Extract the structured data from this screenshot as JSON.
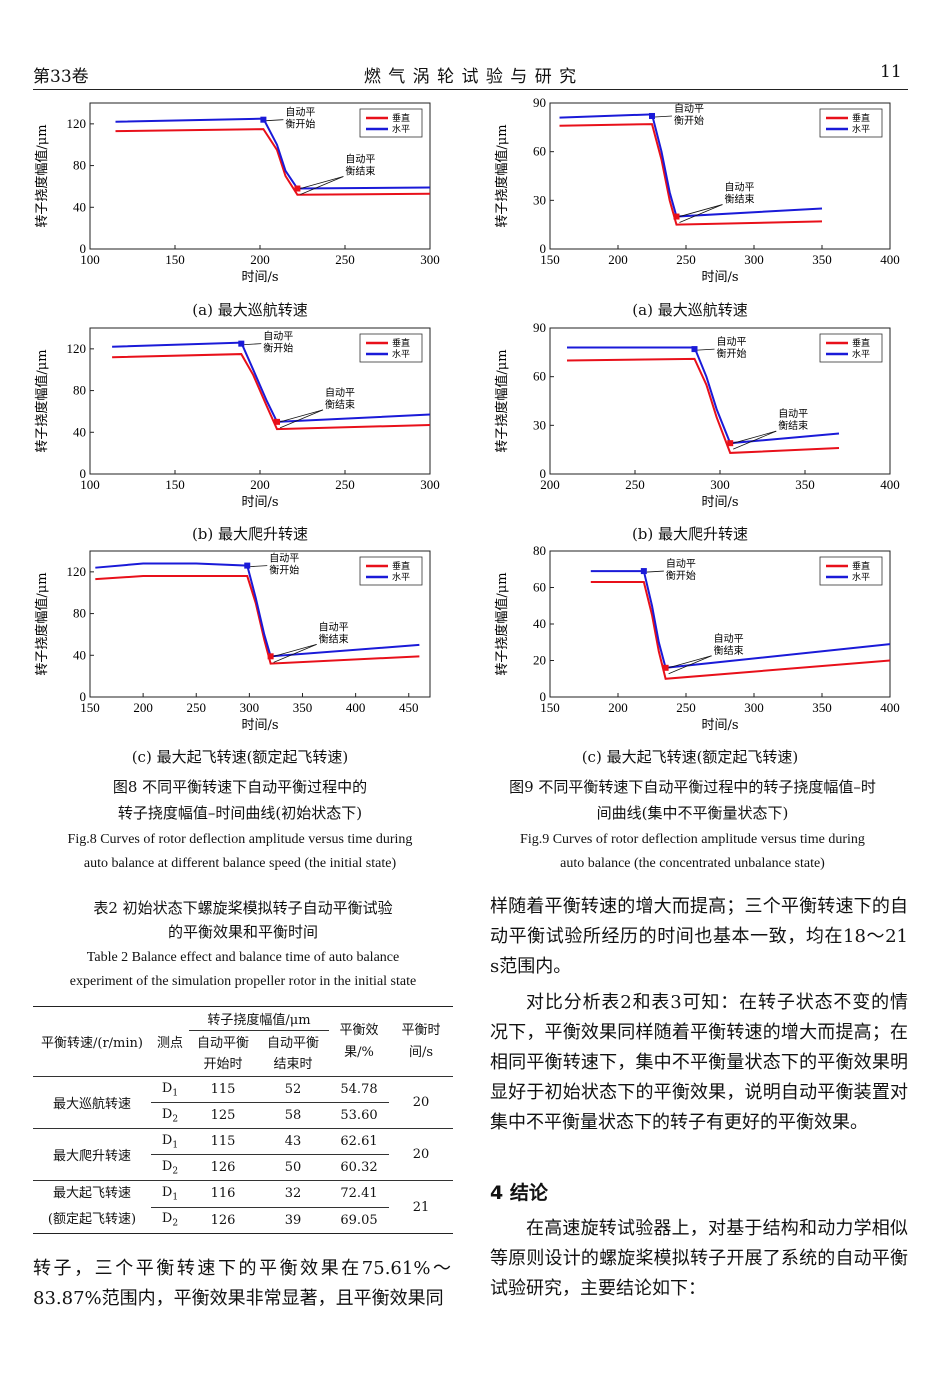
{
  "header": {
    "volume": "第33卷",
    "journal": "燃 气 涡 轮 试 验 与 研 究",
    "page": "11"
  },
  "common": {
    "ylabel": "转子挠度幅值/μm",
    "xlabel": "时间/s",
    "legend": [
      "垂直",
      "水平"
    ],
    "ann_start": [
      "自动平",
      "衡开始"
    ],
    "ann_end": [
      "自动平",
      "衡结束"
    ]
  },
  "subcaptions": {
    "a": "(a)  最大巡航转速",
    "b": "(b)  最大爬升转速",
    "c": "(c)  最大起飞转速(额定起飞转速)"
  },
  "fig8": {
    "cap1": "图8  不同平衡转速下自动平衡过程中的",
    "cap2": "转子挠度幅值–时间曲线(初始状态下)",
    "en1": "Fig.8  Curves of rotor deflection amplitude versus time during",
    "en2": "auto balance at different balance speed (the initial state)"
  },
  "fig9": {
    "cap1": "图9  不同平衡转速下自动平衡过程中的转子挠度幅值–时",
    "cap2": "间曲线(集中不平衡量状态下)",
    "en1": "Fig.9  Curves of rotor deflection amplitude versus time during",
    "en2": "auto balance (the concentrated unbalance state)"
  },
  "chart_data": [
    {
      "id": "fig8a",
      "type": "line",
      "xlim": [
        100,
        300
      ],
      "ylim": [
        0,
        140
      ],
      "xticks": [
        100,
        150,
        200,
        250,
        300
      ],
      "yticks": [
        0,
        40,
        80,
        120
      ],
      "series": [
        {
          "name": "垂直",
          "color": "#e8101a",
          "x": [
            115,
            202,
            210,
            215,
            222,
            300
          ],
          "y": [
            113,
            115,
            95,
            70,
            52,
            53
          ]
        },
        {
          "name": "水平",
          "color": "#1a1ad8",
          "x": [
            115,
            202,
            210,
            215,
            222,
            300
          ],
          "y": [
            122,
            125,
            100,
            75,
            58,
            59
          ]
        }
      ],
      "ann_start_pt": [
        202,
        124
      ],
      "ann_end_pt": [
        222,
        58
      ]
    },
    {
      "id": "fig8b",
      "type": "line",
      "xlim": [
        100,
        300
      ],
      "ylim": [
        0,
        140
      ],
      "xticks": [
        100,
        150,
        200,
        250,
        300
      ],
      "yticks": [
        0,
        40,
        80,
        120
      ],
      "series": [
        {
          "name": "垂直",
          "color": "#e8101a",
          "x": [
            113,
            189,
            196,
            204,
            210,
            300
          ],
          "y": [
            112,
            115,
            95,
            65,
            43,
            47
          ]
        },
        {
          "name": "水平",
          "color": "#1a1ad8",
          "x": [
            113,
            189,
            196,
            204,
            210,
            300
          ],
          "y": [
            122,
            126,
            100,
            70,
            50,
            57
          ]
        }
      ],
      "ann_start_pt": [
        189,
        125
      ],
      "ann_end_pt": [
        210,
        50
      ]
    },
    {
      "id": "fig8c",
      "type": "line",
      "xlim": [
        150,
        470
      ],
      "ylim": [
        0,
        140
      ],
      "xticks": [
        150,
        200,
        250,
        300,
        350,
        400,
        450
      ],
      "yticks": [
        0,
        40,
        80,
        120
      ],
      "series": [
        {
          "name": "垂直",
          "color": "#e8101a",
          "x": [
            155,
            200,
            250,
            298,
            306,
            314,
            320,
            460
          ],
          "y": [
            113,
            116,
            116,
            116,
            90,
            55,
            32,
            39
          ]
        },
        {
          "name": "水平",
          "color": "#1a1ad8",
          "x": [
            155,
            200,
            250,
            298,
            306,
            314,
            320,
            460
          ],
          "y": [
            124,
            128,
            128,
            126,
            95,
            60,
            39,
            50
          ]
        }
      ],
      "ann_start_pt": [
        298,
        126
      ],
      "ann_end_pt": [
        320,
        39
      ]
    },
    {
      "id": "fig9a",
      "type": "line",
      "xlim": [
        150,
        400
      ],
      "ylim": [
        0,
        90
      ],
      "xticks": [
        150,
        200,
        250,
        300,
        350,
        400
      ],
      "yticks": [
        0,
        30,
        60,
        90
      ],
      "series": [
        {
          "name": "垂直",
          "color": "#e8101a",
          "x": [
            157,
            225,
            232,
            238,
            243,
            350
          ],
          "y": [
            76,
            77,
            55,
            30,
            15,
            17
          ]
        },
        {
          "name": "水平",
          "color": "#1a1ad8",
          "x": [
            157,
            225,
            232,
            238,
            243,
            350
          ],
          "y": [
            81,
            83,
            60,
            35,
            20,
            25
          ]
        }
      ],
      "ann_start_pt": [
        225,
        82
      ],
      "ann_end_pt": [
        243,
        20
      ]
    },
    {
      "id": "fig9b",
      "type": "line",
      "xlim": [
        200,
        400
      ],
      "ylim": [
        0,
        90
      ],
      "xticks": [
        200,
        250,
        300,
        350,
        400
      ],
      "yticks": [
        0,
        30,
        60,
        90
      ],
      "series": [
        {
          "name": "垂直",
          "color": "#e8101a",
          "x": [
            210,
            285,
            292,
            298,
            306,
            370
          ],
          "y": [
            70,
            71,
            55,
            35,
            13,
            16
          ]
        },
        {
          "name": "水平",
          "color": "#1a1ad8",
          "x": [
            210,
            285,
            292,
            298,
            306,
            370
          ],
          "y": [
            78,
            78,
            60,
            40,
            19,
            25
          ]
        }
      ],
      "ann_start_pt": [
        285,
        77
      ],
      "ann_end_pt": [
        306,
        19
      ]
    },
    {
      "id": "fig9c",
      "type": "line",
      "xlim": [
        150,
        400
      ],
      "ylim": [
        0,
        80
      ],
      "xticks": [
        150,
        200,
        250,
        300,
        350,
        400
      ],
      "yticks": [
        0,
        20,
        40,
        60,
        80
      ],
      "series": [
        {
          "name": "垂直",
          "color": "#e8101a",
          "x": [
            180,
            219,
            225,
            230,
            235,
            400
          ],
          "y": [
            63,
            63,
            45,
            25,
            10,
            20
          ]
        },
        {
          "name": "水平",
          "color": "#1a1ad8",
          "x": [
            180,
            219,
            225,
            230,
            235,
            400
          ],
          "y": [
            69,
            69,
            50,
            30,
            16,
            29
          ]
        }
      ],
      "ann_start_pt": [
        219,
        69
      ],
      "ann_end_pt": [
        235,
        16
      ]
    }
  ],
  "table2": {
    "cap1": "表2  初始状态下螺旋桨模拟转子自动平衡试验",
    "cap2": "的平衡效果和平衡时间",
    "en1": "Table 2  Balance effect and balance time of auto balance",
    "en2": "experiment of the simulation propeller rotor in the initial state",
    "h_speed": "平衡转速/(r/min)",
    "h_point": "测点",
    "h_amp": "转子挠度幅值/μm",
    "h_start": "自动平衡\n开始时",
    "h_end": "自动平衡\n结束时",
    "h_eff": "平衡效\n果/%",
    "h_time": "平衡时\n间/s",
    "groups": [
      {
        "speed": "最大巡航转速",
        "time": "20",
        "rows": [
          {
            "p": "D1",
            "s": "115",
            "e": "52",
            "eff": "54.78"
          },
          {
            "p": "D2",
            "s": "125",
            "e": "58",
            "eff": "53.60"
          }
        ]
      },
      {
        "speed": "最大爬升转速",
        "time": "20",
        "rows": [
          {
            "p": "D1",
            "s": "115",
            "e": "43",
            "eff": "62.61"
          },
          {
            "p": "D2",
            "s": "126",
            "e": "50",
            "eff": "60.32"
          }
        ]
      },
      {
        "speed": "最大起飞转速\n(额定起飞转速)",
        "time": "21",
        "rows": [
          {
            "p": "D1",
            "s": "116",
            "e": "32",
            "eff": "72.41"
          },
          {
            "p": "D2",
            "s": "126",
            "e": "39",
            "eff": "69.05"
          }
        ]
      }
    ]
  },
  "body": {
    "left_p1": "转子，三个平衡转速下的平衡效果在75.61%～83.87%范围内，平衡效果非常显著，且平衡效果同",
    "right_p1": "样随着平衡转速的增大而提高；三个平衡转速下的自动平衡试验所经历的时间也基本一致，均在18～21 s范围内。",
    "right_p2": "对比分析表2和表3可知：在转子状态不变的情况下，平衡效果同样随着平衡转速的增大而提高；在相同平衡转速下，集中不平衡量状态下的平衡效果明显好于初始状态下的平衡效果，说明自动平衡装置对集中不平衡量状态下的转子有更好的平衡效果。",
    "section": "4  结论",
    "right_p3": "在高速旋转试验器上，对基于结构和动力学相似等原则设计的螺旋桨模拟转子开展了系统的自动平衡试验研究，主要结论如下："
  }
}
